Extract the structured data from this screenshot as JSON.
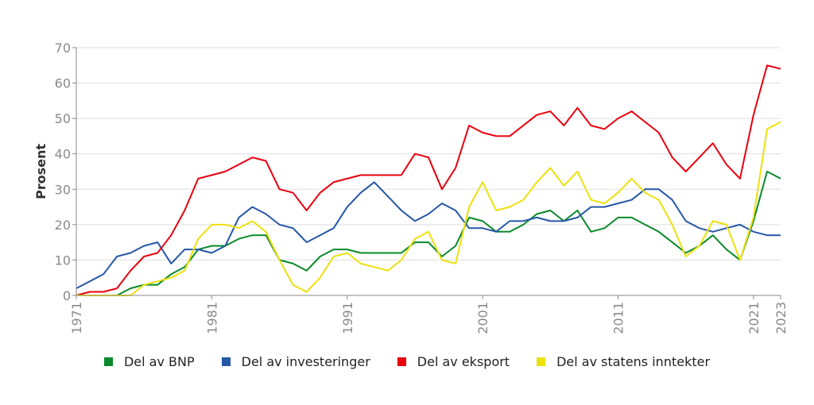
{
  "chart_data": {
    "type": "line",
    "title": "",
    "xlabel": "",
    "ylabel": "Prosent",
    "xlim": [
      1971,
      2023
    ],
    "ylim": [
      0,
      70
    ],
    "x_ticks": [
      1971,
      1981,
      1991,
      2001,
      2011,
      2021,
      2023
    ],
    "y_ticks": [
      0,
      10,
      20,
      30,
      40,
      50,
      60,
      70
    ],
    "grid": "horizontal",
    "legend_position": "bottom",
    "x": [
      1971,
      1972,
      1973,
      1974,
      1975,
      1976,
      1977,
      1978,
      1979,
      1980,
      1981,
      1982,
      1983,
      1984,
      1985,
      1986,
      1987,
      1988,
      1989,
      1990,
      1991,
      1992,
      1993,
      1994,
      1995,
      1996,
      1997,
      1998,
      1999,
      2000,
      2001,
      2002,
      2003,
      2004,
      2005,
      2006,
      2007,
      2008,
      2009,
      2010,
      2011,
      2012,
      2013,
      2014,
      2015,
      2016,
      2017,
      2018,
      2019,
      2020,
      2021,
      2022,
      2023
    ],
    "series": [
      {
        "name": "Del av BNP",
        "color": "#0a8a2a",
        "values": [
          0,
          0,
          0,
          0,
          2,
          3,
          3,
          6,
          8,
          13,
          14,
          14,
          16,
          17,
          17,
          10,
          9,
          7,
          11,
          13,
          13,
          12,
          12,
          12,
          12,
          15,
          15,
          11,
          14,
          22,
          21,
          18,
          18,
          20,
          23,
          24,
          21,
          24,
          18,
          19,
          22,
          22,
          20,
          18,
          15,
          12,
          14,
          17,
          13,
          10,
          21,
          35,
          33
        ]
      },
      {
        "name": "Del av investeringer",
        "color": "#2557a7",
        "values": [
          2,
          4,
          6,
          11,
          12,
          14,
          15,
          9,
          13,
          13,
          12,
          14,
          22,
          25,
          23,
          20,
          19,
          15,
          17,
          19,
          25,
          29,
          32,
          28,
          24,
          21,
          23,
          26,
          24,
          19,
          19,
          18,
          21,
          21,
          22,
          21,
          21,
          22,
          25,
          25,
          26,
          27,
          30,
          30,
          27,
          21,
          19,
          18,
          19,
          20,
          18,
          17,
          17
        ]
      },
      {
        "name": "Del av eksport",
        "color": "#e8000d",
        "values": [
          0,
          1,
          1,
          2,
          7,
          11,
          12,
          17,
          24,
          33,
          34,
          35,
          37,
          39,
          38,
          30,
          29,
          24,
          29,
          32,
          33,
          34,
          34,
          34,
          34,
          40,
          39,
          30,
          36,
          48,
          46,
          45,
          45,
          48,
          51,
          52,
          48,
          53,
          48,
          47,
          50,
          52,
          49,
          46,
          39,
          35,
          39,
          43,
          37,
          33,
          51,
          65,
          64
        ]
      },
      {
        "name": "Del av statens inntekter",
        "color": "#ede10e",
        "values": [
          0,
          0,
          0,
          0,
          0,
          3,
          4,
          5,
          7,
          16,
          20,
          20,
          19,
          21,
          18,
          10,
          3,
          1,
          5,
          11,
          12,
          9,
          8,
          7,
          10,
          16,
          18,
          10,
          9,
          25,
          32,
          24,
          25,
          27,
          32,
          36,
          31,
          35,
          27,
          26,
          29,
          33,
          29,
          27,
          20,
          11,
          14,
          21,
          20,
          10,
          22,
          47,
          49
        ]
      }
    ]
  }
}
